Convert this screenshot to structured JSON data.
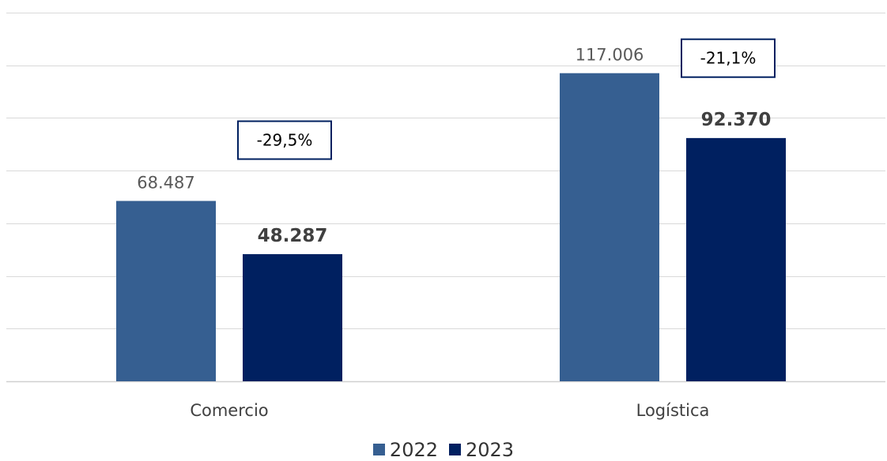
{
  "chart_data": {
    "type": "bar",
    "categories": [
      "Comercio",
      "Logística"
    ],
    "series": [
      {
        "name": "2022",
        "values": [
          68487,
          117006
        ],
        "labels": [
          "68.487",
          "117.006"
        ],
        "color": "#365F91",
        "label_style": "normal"
      },
      {
        "name": "2023",
        "values": [
          48287,
          92370
        ],
        "labels": [
          "48.287",
          "92.370"
        ],
        "color": "#002060",
        "label_style": "bold"
      }
    ],
    "annotations": [
      "-29,5%",
      "-21,1%"
    ],
    "ylim": [
      0,
      140000
    ],
    "y_gridline_step": 20000,
    "grid": true,
    "legend": "bottom-center",
    "title": "",
    "xlabel": "",
    "ylabel": ""
  }
}
